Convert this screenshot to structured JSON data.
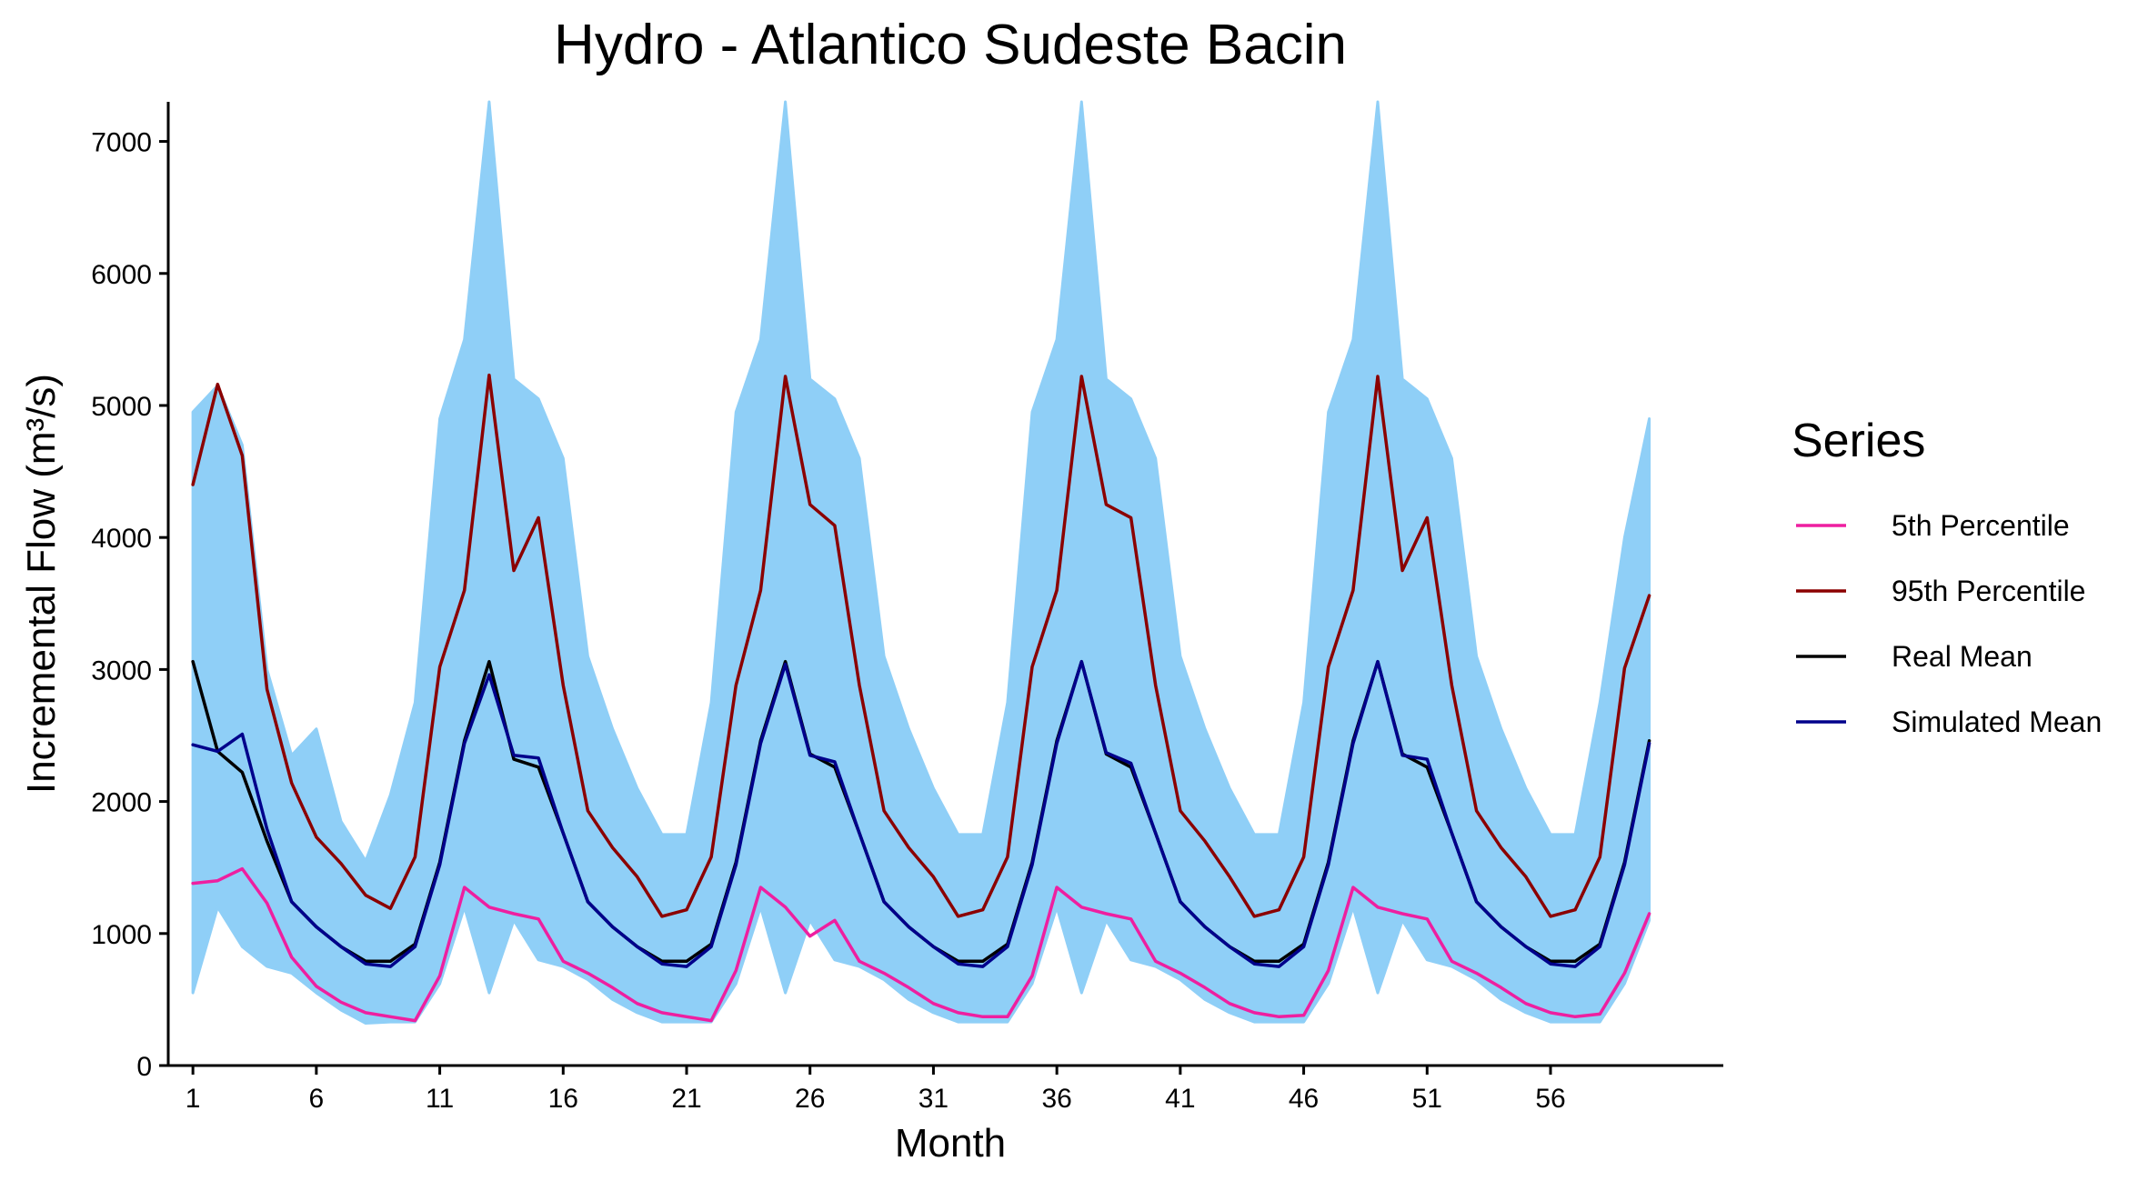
{
  "chart_data": {
    "type": "line",
    "title": "Hydro - Atlantico Sudeste Bacin",
    "xlabel": "Month",
    "ylabel": "Incremental Flow (m³/s)",
    "xlim": [
      0,
      63
    ],
    "ylim": [
      0,
      7300
    ],
    "x_ticks": [
      1,
      6,
      11,
      16,
      21,
      26,
      31,
      36,
      41,
      46,
      51,
      56
    ],
    "y_ticks": [
      0,
      1000,
      2000,
      3000,
      4000,
      5000,
      6000,
      7000
    ],
    "grid": false,
    "legend_title": "Series",
    "legend_position": "right",
    "simulation_band": {
      "description_color": "#8fcff7",
      "upper_envelope": [
        4950,
        5150,
        4700,
        3000,
        2350,
        2550,
        1850,
        1550,
        2050,
        2750,
        4900,
        5500,
        7300,
        5200,
        5050,
        4600,
        3100,
        2550,
        2100,
        1750,
        1750,
        2750,
        4950,
        5500,
        7300,
        5200,
        5050,
        4600,
        3100,
        2550,
        2100,
        1750,
        1750,
        2750,
        4950,
        5500,
        7300,
        5200,
        5050,
        4600,
        3100,
        2550,
        2100,
        1750,
        1750,
        2750,
        4950,
        5500,
        7300,
        5200,
        5050,
        4600,
        3100,
        2550,
        2100,
        1750,
        1750,
        2750,
        4000,
        4900
      ],
      "lower_envelope": [
        550,
        1200,
        900,
        750,
        700,
        550,
        420,
        320,
        330,
        330,
        620,
        1200,
        550,
        1100,
        800,
        750,
        650,
        500,
        400,
        330,
        330,
        330,
        620,
        1200,
        550,
        1100,
        800,
        750,
        650,
        500,
        400,
        330,
        330,
        330,
        620,
        1200,
        550,
        1100,
        800,
        750,
        650,
        500,
        400,
        330,
        330,
        330,
        620,
        1200,
        550,
        1100,
        800,
        750,
        650,
        500,
        400,
        330,
        330,
        330,
        620,
        1100
      ]
    },
    "x": [
      1,
      2,
      3,
      4,
      5,
      6,
      7,
      8,
      9,
      10,
      11,
      12,
      13,
      14,
      15,
      16,
      17,
      18,
      19,
      20,
      21,
      22,
      23,
      24,
      25,
      26,
      27,
      28,
      29,
      30,
      31,
      32,
      33,
      34,
      35,
      36,
      37,
      38,
      39,
      40,
      41,
      42,
      43,
      44,
      45,
      46,
      47,
      48,
      49,
      50,
      51,
      52,
      53,
      54,
      55,
      56,
      57,
      58,
      59,
      60
    ],
    "series": [
      {
        "name": "5th Percentile",
        "color": "#ee1fa0",
        "values": [
          1380,
          1400,
          1490,
          1230,
          820,
          600,
          480,
          400,
          370,
          340,
          680,
          1350,
          1200,
          1150,
          1110,
          790,
          700,
          590,
          470,
          400,
          370,
          340,
          720,
          1350,
          1200,
          980,
          1100,
          790,
          700,
          590,
          470,
          400,
          370,
          370,
          680,
          1350,
          1200,
          1150,
          1110,
          790,
          700,
          590,
          470,
          400,
          370,
          380,
          720,
          1350,
          1200,
          1150,
          1110,
          790,
          700,
          590,
          470,
          400,
          370,
          390,
          700,
          1150
        ]
      },
      {
        "name": "95th Percentile",
        "color": "#8b0000",
        "values": [
          4400,
          5160,
          4620,
          2850,
          2140,
          1730,
          1530,
          1290,
          1190,
          1580,
          3020,
          3600,
          5230,
          3750,
          4150,
          2880,
          1930,
          1650,
          1430,
          1130,
          1180,
          1580,
          2880,
          3600,
          5220,
          4250,
          4090,
          2880,
          1930,
          1650,
          1430,
          1130,
          1180,
          1580,
          3020,
          3600,
          5220,
          4250,
          4150,
          2880,
          1930,
          1700,
          1430,
          1130,
          1180,
          1580,
          3020,
          3600,
          5220,
          3750,
          4150,
          2880,
          1930,
          1650,
          1430,
          1130,
          1180,
          1580,
          3010,
          3560
        ]
      },
      {
        "name": "Real Mean",
        "color": "#000000",
        "values": [
          3060,
          2380,
          2220,
          1700,
          1240,
          1050,
          900,
          790,
          790,
          920,
          1540,
          2460,
          3060,
          2320,
          2260,
          1760,
          1240,
          1050,
          900,
          790,
          790,
          920,
          1540,
          2460,
          3060,
          2360,
          2260,
          1760,
          1240,
          1050,
          900,
          790,
          790,
          920,
          1540,
          2460,
          3060,
          2360,
          2260,
          1760,
          1240,
          1050,
          900,
          790,
          790,
          920,
          1540,
          2460,
          3060,
          2360,
          2260,
          1760,
          1240,
          1050,
          900,
          790,
          790,
          920,
          1540,
          2460
        ]
      },
      {
        "name": "Simulated Mean",
        "color": "#00008b",
        "values": [
          2430,
          2380,
          2510,
          1790,
          1240,
          1050,
          900,
          770,
          750,
          900,
          1520,
          2440,
          2960,
          2350,
          2330,
          1760,
          1240,
          1050,
          900,
          770,
          750,
          900,
          1520,
          2440,
          3040,
          2350,
          2300,
          1760,
          1240,
          1050,
          900,
          770,
          750,
          900,
          1520,
          2440,
          3060,
          2370,
          2290,
          1760,
          1240,
          1050,
          900,
          770,
          750,
          900,
          1520,
          2440,
          3060,
          2350,
          2320,
          1760,
          1240,
          1050,
          900,
          770,
          750,
          900,
          1520,
          2440
        ]
      }
    ]
  }
}
